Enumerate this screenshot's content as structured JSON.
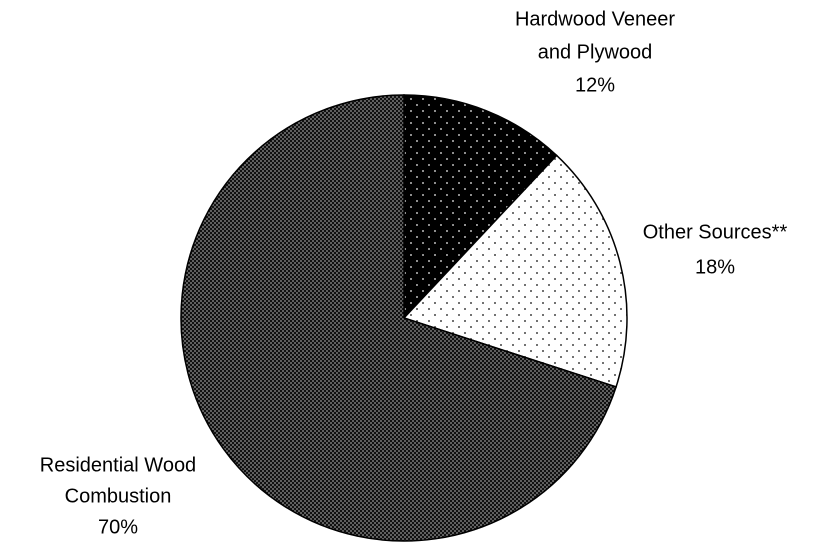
{
  "chart_data": {
    "type": "pie",
    "labels": [
      [
        "Hardwood Veneer",
        "and Plywood"
      ],
      [
        "Other Sources**"
      ],
      [
        "Residential Wood",
        "Combustion"
      ]
    ],
    "values": [
      12,
      18,
      70
    ],
    "value_labels": [
      "12%",
      "18%",
      "70%"
    ],
    "patterns": [
      "dots-on-black",
      "dots-on-white",
      "dense-dots"
    ]
  }
}
